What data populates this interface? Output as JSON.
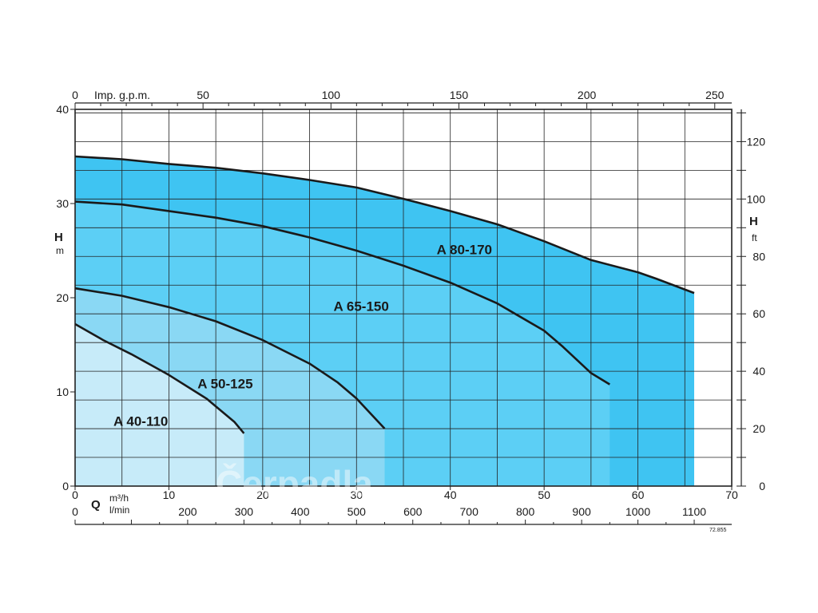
{
  "chart_data": {
    "type": "area",
    "xlabel": "Q",
    "x_unit": "m³/h",
    "x_unit_secondary": "l/min",
    "x_unit_top": "Imp. g.p.m.",
    "ylabel": "H",
    "y_unit": "m",
    "ylabel_right": "H",
    "y_unit_right": "ft",
    "xlim": [
      0,
      70
    ],
    "ylim": [
      0,
      40
    ],
    "grid": true,
    "ticks": {
      "bottom": [
        "0",
        "10",
        "20",
        "30",
        "40",
        "50",
        "60",
        "70"
      ],
      "bottom_lmin": [
        "0",
        "200",
        "300",
        "400",
        "500",
        "600",
        "700",
        "800",
        "900",
        "1000",
        "1100"
      ],
      "top": [
        "0",
        "50",
        "100",
        "150",
        "200",
        "250"
      ],
      "left": [
        "0",
        "10",
        "20",
        "30",
        "40"
      ],
      "right": [
        "0",
        "20",
        "40",
        "60",
        "80",
        "100",
        "120"
      ]
    },
    "series": [
      {
        "name": "A 80-170",
        "color": "#3fc4f2",
        "x": [
          0,
          5,
          10,
          15,
          20,
          25,
          30,
          35,
          40,
          45,
          50,
          55,
          60,
          62,
          66
        ],
        "y": [
          35,
          34.7,
          34.2,
          33.8,
          33.2,
          32.5,
          31.7,
          30.5,
          29.2,
          27.8,
          26.0,
          24.0,
          22.7,
          22.0,
          20.5
        ]
      },
      {
        "name": "A 65-150",
        "color": "#5ccff5",
        "x": [
          0,
          5,
          10,
          15,
          20,
          25,
          30,
          35,
          40,
          45,
          50,
          52,
          55,
          57
        ],
        "y": [
          30.2,
          29.9,
          29.2,
          28.5,
          27.6,
          26.4,
          25.0,
          23.4,
          21.6,
          19.4,
          16.5,
          14.8,
          12.0,
          10.8
        ]
      },
      {
        "name": "A 50-125",
        "color": "#8ad8f4",
        "x": [
          0,
          5,
          10,
          15,
          20,
          25,
          28,
          30,
          33
        ],
        "y": [
          21.0,
          20.2,
          19.0,
          17.5,
          15.5,
          13.0,
          11.0,
          9.3,
          6.1
        ]
      },
      {
        "name": "A 40-110",
        "color": "#c7ebf9",
        "x": [
          0,
          3,
          6,
          10,
          14,
          17,
          18
        ],
        "y": [
          17.2,
          15.5,
          14.0,
          11.8,
          9.3,
          6.8,
          5.6
        ]
      }
    ],
    "annotations": [
      "72.855"
    ],
    "watermark": "Čerpadla"
  },
  "colors": {
    "grid": "#222222",
    "curve": "#1a1a1a",
    "background": "#ffffff"
  }
}
